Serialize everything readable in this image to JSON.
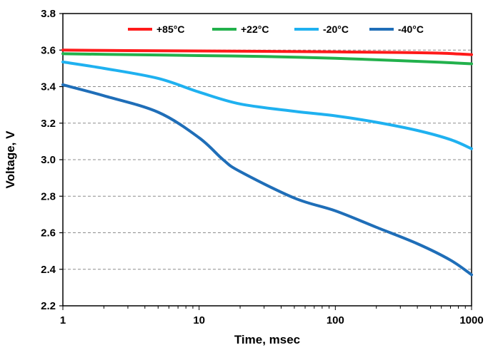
{
  "chart_data": {
    "type": "line",
    "title": "",
    "xlabel": "Time, msec",
    "ylabel": "Voltage, V",
    "xscale": "log",
    "xlim": [
      1,
      1000
    ],
    "ylim": [
      2.2,
      3.8
    ],
    "x_ticks": [
      "1",
      "10",
      "100",
      "1000"
    ],
    "y_ticks": [
      "2.2",
      "2.4",
      "2.6",
      "2.8",
      "3.0",
      "3.2",
      "3.4",
      "3.6",
      "3.8"
    ],
    "grid": "horizontal dashed",
    "legend_position": "top",
    "series": [
      {
        "name": "+85°C",
        "color": "#ff1a1a",
        "points": [
          [
            1,
            3.6
          ],
          [
            3,
            3.597
          ],
          [
            10,
            3.595
          ],
          [
            30,
            3.593
          ],
          [
            100,
            3.59
          ],
          [
            300,
            3.587
          ],
          [
            600,
            3.583
          ],
          [
            1000,
            3.575
          ]
        ]
      },
      {
        "name": "+22°C",
        "color": "#22b14c",
        "points": [
          [
            1,
            3.58
          ],
          [
            3,
            3.575
          ],
          [
            10,
            3.57
          ],
          [
            30,
            3.565
          ],
          [
            100,
            3.555
          ],
          [
            300,
            3.542
          ],
          [
            600,
            3.533
          ],
          [
            1000,
            3.525
          ]
        ]
      },
      {
        "name": "-20°C",
        "color": "#1fb1f0",
        "points": [
          [
            1,
            3.535
          ],
          [
            2,
            3.5
          ],
          [
            5,
            3.445
          ],
          [
            10,
            3.37
          ],
          [
            20,
            3.305
          ],
          [
            50,
            3.265
          ],
          [
            100,
            3.24
          ],
          [
            200,
            3.205
          ],
          [
            400,
            3.16
          ],
          [
            700,
            3.11
          ],
          [
            1000,
            3.06
          ]
        ]
      },
      {
        "name": "-40°C",
        "color": "#1f6eb8",
        "points": [
          [
            1,
            3.41
          ],
          [
            2,
            3.35
          ],
          [
            5,
            3.26
          ],
          [
            10,
            3.12
          ],
          [
            15,
            3.0
          ],
          [
            20,
            2.935
          ],
          [
            50,
            2.79
          ],
          [
            100,
            2.72
          ],
          [
            200,
            2.63
          ],
          [
            400,
            2.54
          ],
          [
            700,
            2.45
          ],
          [
            1000,
            2.37
          ]
        ]
      }
    ]
  }
}
